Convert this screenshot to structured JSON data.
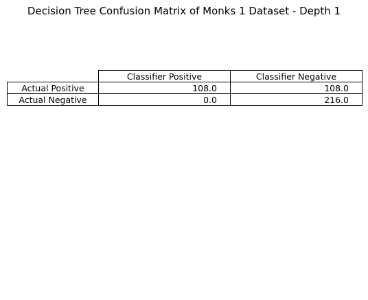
{
  "chart_data": {
    "type": "table",
    "title": "Decision Tree Confusion Matrix of Monks 1 Dataset - Depth 1",
    "column_headers": [
      "Classifier Positive",
      "Classifier Negative"
    ],
    "row_headers": [
      "Actual Positive",
      "Actual Negative"
    ],
    "cells": [
      [
        "108.0",
        "108.0"
      ],
      [
        "0.0",
        "216.0"
      ]
    ]
  }
}
